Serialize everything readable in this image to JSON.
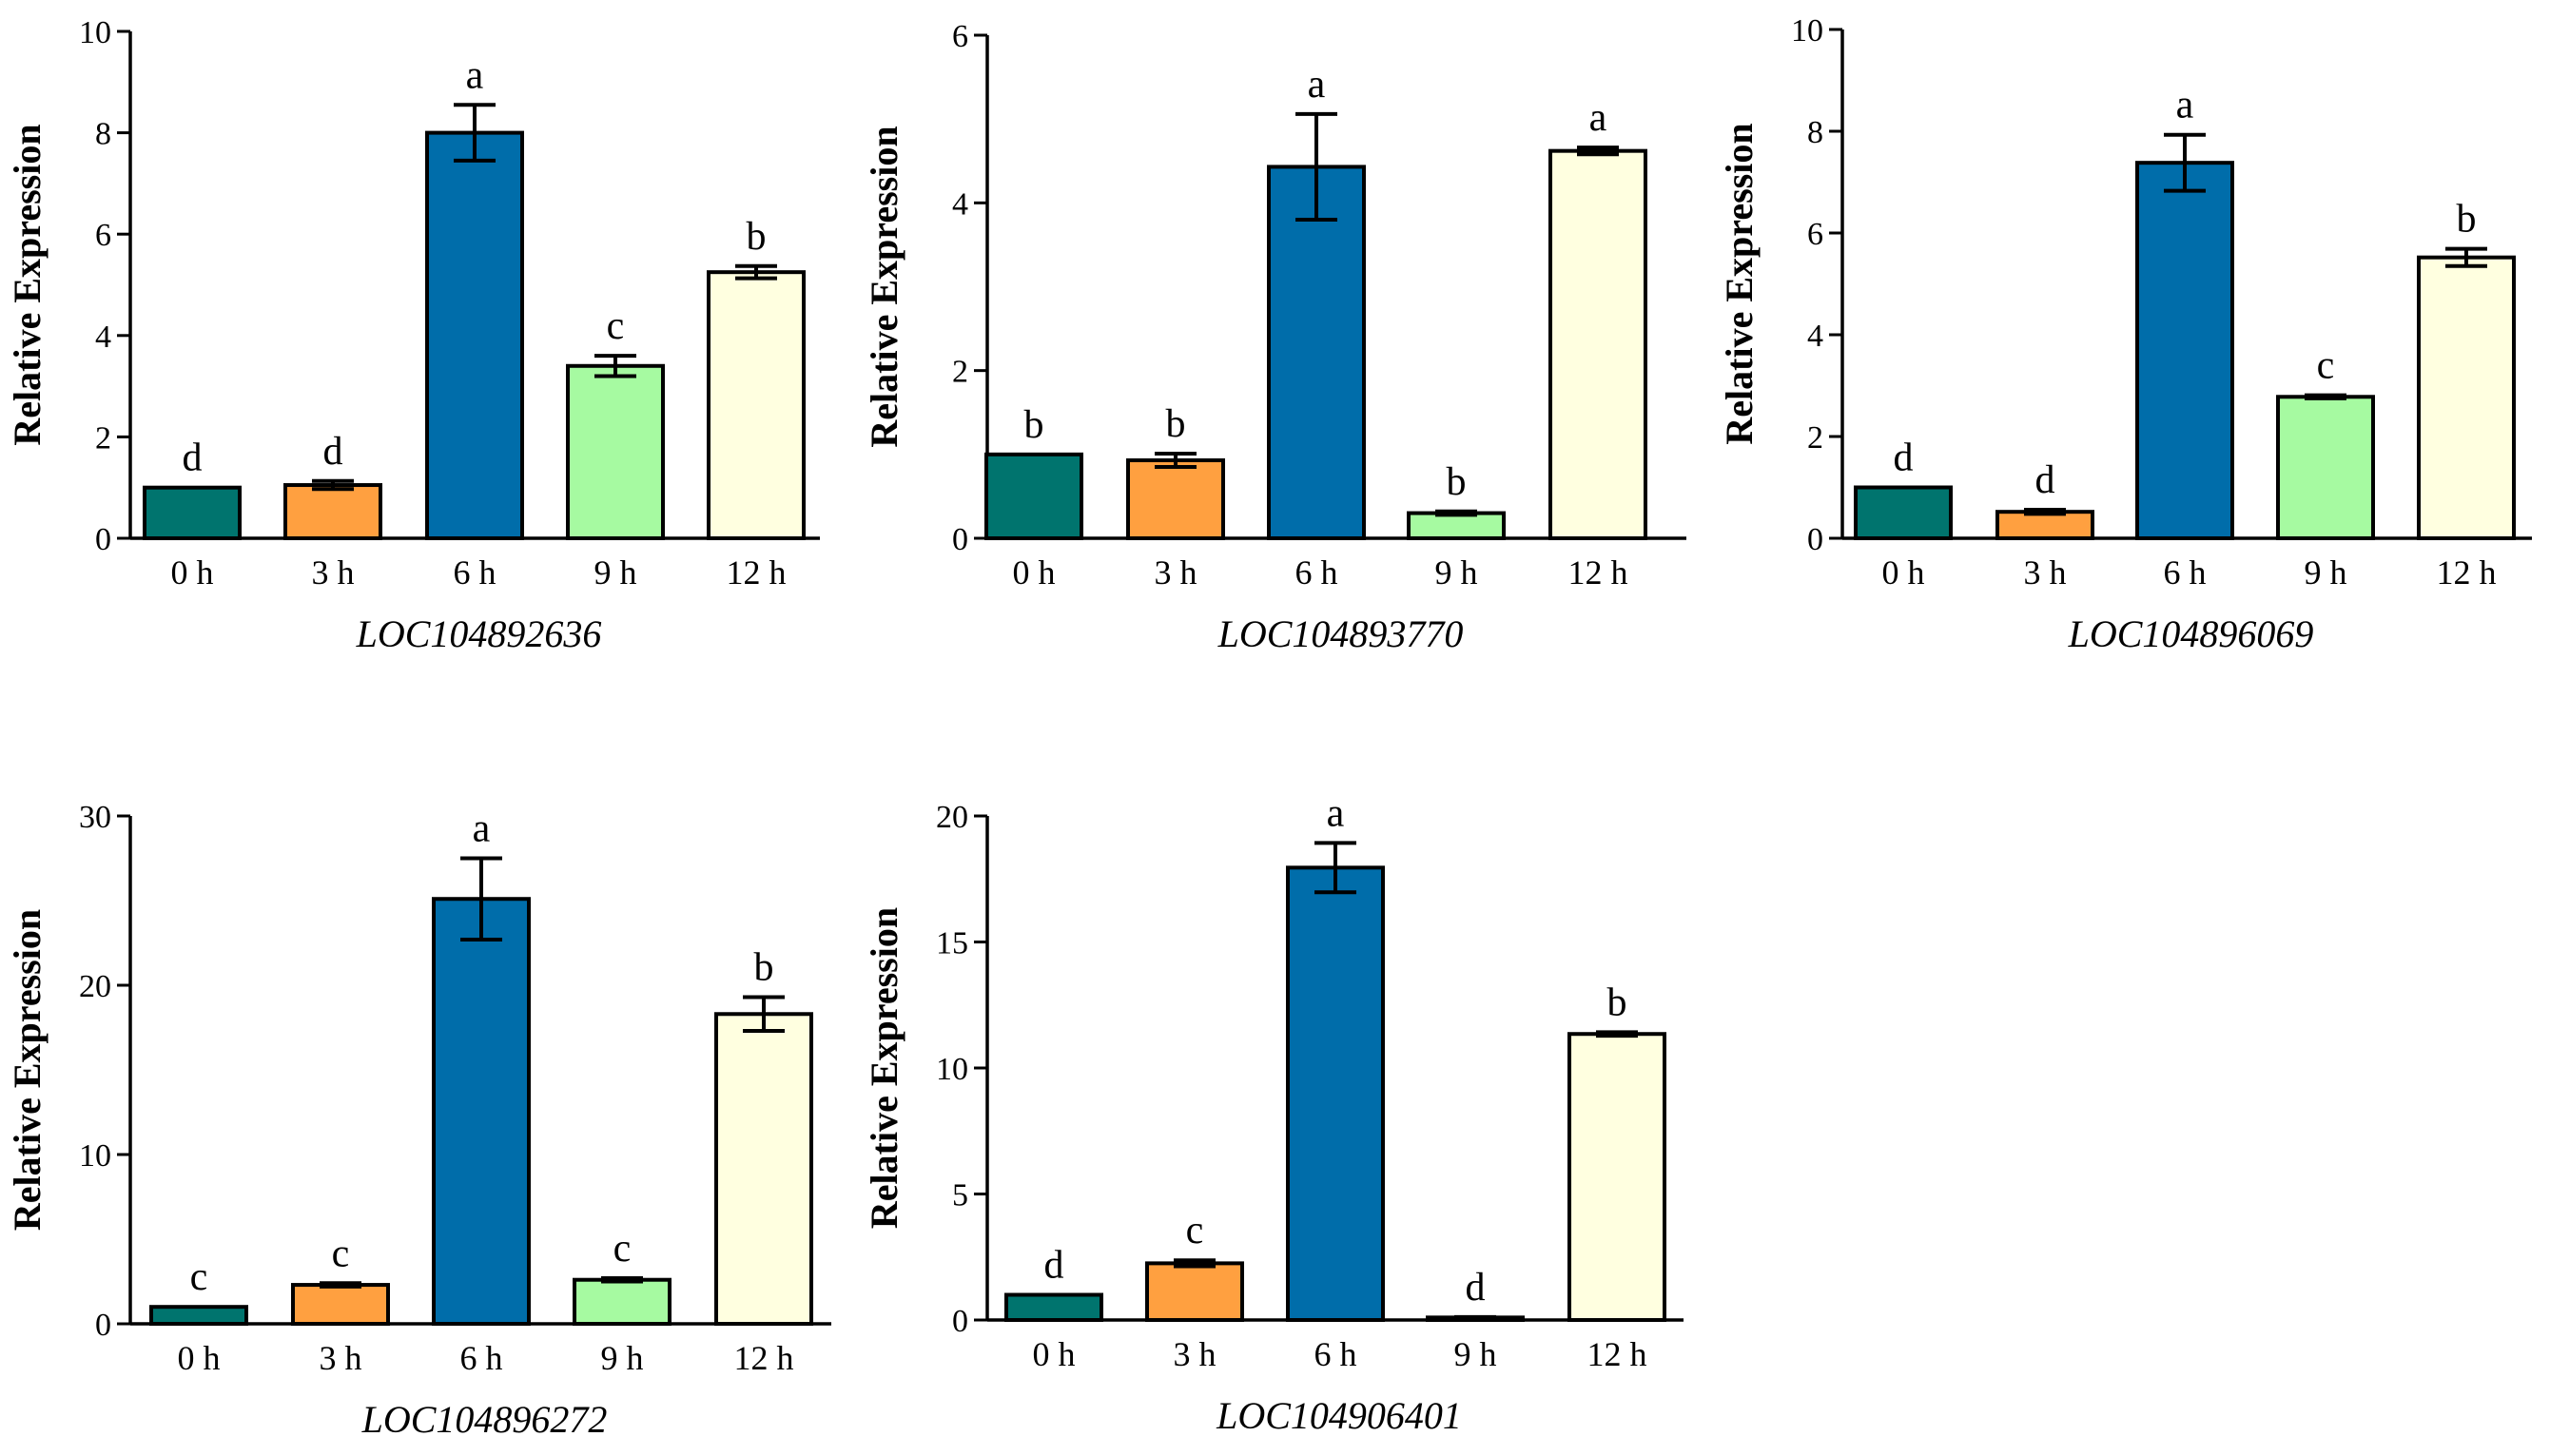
{
  "colors": {
    "bar_colors": [
      "#00746E",
      "#FFA040",
      "#006DAA",
      "#A6FAA1",
      "#FFFFE0"
    ],
    "axis": "#000000"
  },
  "chart_data": [
    {
      "type": "bar",
      "gene": "LOC104892636",
      "ylabel": "Relative Expression",
      "categories": [
        "0 h",
        "3 h",
        "6 h",
        "9 h",
        "12 h"
      ],
      "values": [
        1.0,
        1.05,
        8.0,
        3.4,
        5.25
      ],
      "errors": [
        0.0,
        0.08,
        0.55,
        0.2,
        0.12
      ],
      "letters": [
        "d",
        "d",
        "a",
        "c",
        "b"
      ],
      "ylim": [
        0,
        10
      ],
      "yticks": [
        0,
        2,
        4,
        6,
        8,
        10
      ]
    },
    {
      "type": "bar",
      "gene": "LOC104893770",
      "ylabel": "Relative Expression",
      "categories": [
        "0 h",
        "3 h",
        "6 h",
        "9 h",
        "12 h"
      ],
      "values": [
        1.0,
        0.93,
        4.43,
        0.3,
        4.62
      ],
      "errors": [
        0.0,
        0.08,
        0.63,
        0.02,
        0.04
      ],
      "letters": [
        "b",
        "b",
        "a",
        "b",
        "a"
      ],
      "ylim": [
        0,
        6
      ],
      "yticks": [
        0,
        2,
        4,
        6
      ]
    },
    {
      "type": "bar",
      "gene": "LOC104896069",
      "ylabel": "Relative Expression",
      "categories": [
        "0 h",
        "3 h",
        "6 h",
        "9 h",
        "12 h"
      ],
      "values": [
        1.0,
        0.52,
        7.38,
        2.78,
        5.52
      ],
      "errors": [
        0.0,
        0.04,
        0.55,
        0.03,
        0.17
      ],
      "letters": [
        "d",
        "d",
        "a",
        "c",
        "b"
      ],
      "ylim": [
        0,
        10
      ],
      "yticks": [
        0,
        2,
        4,
        6,
        8,
        10
      ]
    },
    {
      "type": "bar",
      "gene": "LOC104896272",
      "ylabel": "Relative Expression",
      "categories": [
        "0 h",
        "3 h",
        "6 h",
        "9 h",
        "12 h"
      ],
      "values": [
        1.0,
        2.3,
        25.1,
        2.6,
        18.3
      ],
      "errors": [
        0.0,
        0.1,
        2.4,
        0.1,
        1.0
      ],
      "letters": [
        "c",
        "c",
        "a",
        "c",
        "b"
      ],
      "ylim": [
        0,
        30
      ],
      "yticks": [
        0,
        10,
        20,
        30
      ]
    },
    {
      "type": "bar",
      "gene": "LOC104906401",
      "ylabel": "Relative Expression",
      "categories": [
        "0 h",
        "3 h",
        "6 h",
        "9 h",
        "12 h"
      ],
      "values": [
        1.0,
        2.25,
        17.95,
        0.1,
        11.35
      ],
      "errors": [
        0.0,
        0.12,
        0.98,
        0.02,
        0.07
      ],
      "letters": [
        "d",
        "c",
        "a",
        "d",
        "b"
      ],
      "ylim": [
        0,
        20
      ],
      "yticks": [
        0,
        5,
        10,
        15,
        20
      ]
    }
  ]
}
